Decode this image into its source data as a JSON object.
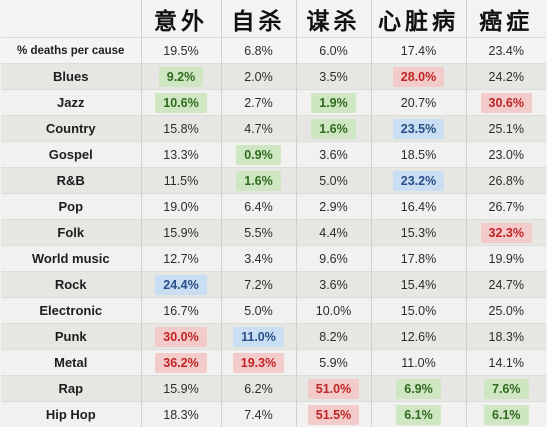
{
  "columns": [
    "",
    "意外",
    "自杀",
    "谋杀",
    "心脏病",
    "癌症"
  ],
  "total": {
    "label": "% deaths per cause",
    "values": [
      "19.5%",
      "6.8%",
      "6.0%",
      "17.4%",
      "23.4%"
    ]
  },
  "rows": [
    {
      "genre": "Blues",
      "values": [
        "9.2%",
        "2.0%",
        "3.5%",
        "28.0%",
        "24.2%"
      ],
      "highlights": [
        "green",
        "",
        "",
        "red",
        ""
      ]
    },
    {
      "genre": "Jazz",
      "values": [
        "10.6%",
        "2.7%",
        "1.9%",
        "20.7%",
        "30.6%"
      ],
      "highlights": [
        "green",
        "",
        "green",
        "",
        "red"
      ]
    },
    {
      "genre": "Country",
      "values": [
        "15.8%",
        "4.7%",
        "1.6%",
        "23.5%",
        "25.1%"
      ],
      "highlights": [
        "",
        "",
        "green",
        "blue",
        ""
      ]
    },
    {
      "genre": "Gospel",
      "values": [
        "13.3%",
        "0.9%",
        "3.6%",
        "18.5%",
        "23.0%"
      ],
      "highlights": [
        "",
        "green",
        "",
        "",
        ""
      ]
    },
    {
      "genre": "R&B",
      "values": [
        "11.5%",
        "1.6%",
        "5.0%",
        "23.2%",
        "26.8%"
      ],
      "highlights": [
        "",
        "green",
        "",
        "blue",
        ""
      ]
    },
    {
      "genre": "Pop",
      "values": [
        "19.0%",
        "6.4%",
        "2.9%",
        "16.4%",
        "26.7%"
      ],
      "highlights": [
        "",
        "",
        "",
        "",
        ""
      ]
    },
    {
      "genre": "Folk",
      "values": [
        "15.9%",
        "5.5%",
        "4.4%",
        "15.3%",
        "32.3%"
      ],
      "highlights": [
        "",
        "",
        "",
        "",
        "red"
      ]
    },
    {
      "genre": "World music",
      "values": [
        "12.7%",
        "3.4%",
        "9.6%",
        "17.8%",
        "19.9%"
      ],
      "highlights": [
        "",
        "",
        "",
        "",
        ""
      ]
    },
    {
      "genre": "Rock",
      "values": [
        "24.4%",
        "7.2%",
        "3.6%",
        "15.4%",
        "24.7%"
      ],
      "highlights": [
        "blue",
        "",
        "",
        "",
        ""
      ]
    },
    {
      "genre": "Electronic",
      "values": [
        "16.7%",
        "5.0%",
        "10.0%",
        "15.0%",
        "25.0%"
      ],
      "highlights": [
        "",
        "",
        "",
        "",
        ""
      ]
    },
    {
      "genre": "Punk",
      "values": [
        "30.0%",
        "11.0%",
        "8.2%",
        "12.6%",
        "18.3%"
      ],
      "highlights": [
        "red",
        "blue",
        "",
        "",
        ""
      ]
    },
    {
      "genre": "Metal",
      "values": [
        "36.2%",
        "19.3%",
        "5.9%",
        "11.0%",
        "14.1%"
      ],
      "highlights": [
        "red",
        "red",
        "",
        "",
        ""
      ]
    },
    {
      "genre": "Rap",
      "values": [
        "15.9%",
        "6.2%",
        "51.0%",
        "6.9%",
        "7.6%"
      ],
      "highlights": [
        "",
        "",
        "red",
        "green",
        "green"
      ]
    },
    {
      "genre": "Hip Hop",
      "values": [
        "18.3%",
        "7.4%",
        "51.5%",
        "6.1%",
        "6.1%"
      ],
      "highlights": [
        "",
        "",
        "red",
        "green",
        "green"
      ]
    }
  ]
}
